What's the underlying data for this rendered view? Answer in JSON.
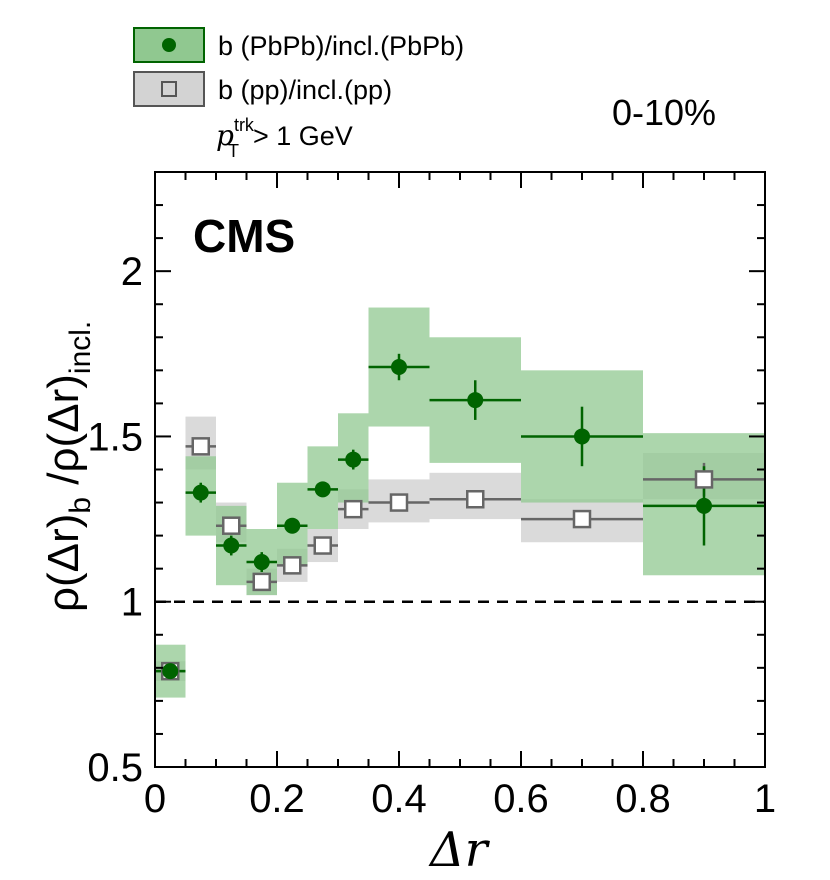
{
  "chart_data": {
    "type": "scatter",
    "title": "",
    "experiment_label": "CMS",
    "centrality_label": "0-10%",
    "cut_label": {
      "var": "p",
      "sup": "trk",
      "sub": "T",
      "rest": "> 1 GeV"
    },
    "xlabel": "Δr",
    "ylabel": {
      "part1": "ρ(Δr)",
      "sub1": "b",
      "part2": " /ρ(Δr)",
      "sub2": "incl."
    },
    "xlim": [
      0,
      1
    ],
    "ylim": [
      0.5,
      2.3
    ],
    "x_ticks": [
      "0",
      "0.2",
      "0.4",
      "0.6",
      "0.8",
      "1"
    ],
    "y_ticks": [
      "0.5",
      "1",
      "1.5",
      "2"
    ],
    "reference_line": 1,
    "series": [
      {
        "name": "b (PbPb)/incl.(PbPb)",
        "marker": "filled-circle",
        "color": "#006400",
        "band_color": "#90c890",
        "points": [
          {
            "x": 0.025,
            "xerr": 0.025,
            "y": 0.79,
            "syst_lo": 0.71,
            "syst_hi": 0.87
          },
          {
            "x": 0.075,
            "xerr": 0.025,
            "y": 1.33,
            "syst_lo": 1.2,
            "syst_hi": 1.44
          },
          {
            "x": 0.125,
            "xerr": 0.025,
            "y": 1.17,
            "syst_lo": 1.05,
            "syst_hi": 1.29
          },
          {
            "x": 0.175,
            "xerr": 0.025,
            "y": 1.12,
            "syst_lo": 1.02,
            "syst_hi": 1.22
          },
          {
            "x": 0.225,
            "xerr": 0.025,
            "y": 1.23,
            "syst_lo": 1.11,
            "syst_hi": 1.36
          },
          {
            "x": 0.275,
            "xerr": 0.025,
            "y": 1.34,
            "syst_lo": 1.22,
            "syst_hi": 1.47
          },
          {
            "x": 0.325,
            "xerr": 0.025,
            "y": 1.43,
            "syst_lo": 1.3,
            "syst_hi": 1.57
          },
          {
            "x": 0.4,
            "xerr": 0.05,
            "y": 1.71,
            "syst_lo": 1.53,
            "syst_hi": 1.89
          },
          {
            "x": 0.525,
            "xerr": 0.075,
            "y": 1.61,
            "syst_lo": 1.42,
            "syst_hi": 1.8
          },
          {
            "x": 0.7,
            "xerr": 0.1,
            "y": 1.5,
            "syst_lo": 1.3,
            "syst_hi": 1.7
          },
          {
            "x": 0.9,
            "xerr": 0.1,
            "y": 1.29,
            "syst_lo": 1.08,
            "syst_hi": 1.51
          }
        ],
        "stat_err": [
          0.02,
          0.03,
          0.03,
          0.03,
          0.02,
          0.02,
          0.03,
          0.04,
          0.06,
          0.09,
          0.12
        ]
      },
      {
        "name": "b (pp)/incl.(pp)",
        "marker": "open-square",
        "color": "#666666",
        "band_color": "#d3d3d3",
        "points": [
          {
            "x": 0.025,
            "xerr": 0.025,
            "y": 0.79,
            "syst_lo": 0.76,
            "syst_hi": 0.82
          },
          {
            "x": 0.075,
            "xerr": 0.025,
            "y": 1.47,
            "syst_lo": 1.4,
            "syst_hi": 1.56
          },
          {
            "x": 0.125,
            "xerr": 0.025,
            "y": 1.23,
            "syst_lo": 1.18,
            "syst_hi": 1.3
          },
          {
            "x": 0.175,
            "xerr": 0.025,
            "y": 1.06,
            "syst_lo": 1.02,
            "syst_hi": 1.1
          },
          {
            "x": 0.225,
            "xerr": 0.025,
            "y": 1.11,
            "syst_lo": 1.06,
            "syst_hi": 1.16
          },
          {
            "x": 0.275,
            "xerr": 0.025,
            "y": 1.17,
            "syst_lo": 1.12,
            "syst_hi": 1.22
          },
          {
            "x": 0.325,
            "xerr": 0.025,
            "y": 1.28,
            "syst_lo": 1.22,
            "syst_hi": 1.34
          },
          {
            "x": 0.4,
            "xerr": 0.05,
            "y": 1.3,
            "syst_lo": 1.24,
            "syst_hi": 1.37
          },
          {
            "x": 0.525,
            "xerr": 0.075,
            "y": 1.31,
            "syst_lo": 1.25,
            "syst_hi": 1.39
          },
          {
            "x": 0.7,
            "xerr": 0.1,
            "y": 1.25,
            "syst_lo": 1.18,
            "syst_hi": 1.31
          },
          {
            "x": 0.9,
            "xerr": 0.1,
            "y": 1.37,
            "syst_lo": 1.31,
            "syst_hi": 1.45
          }
        ],
        "stat_err": [
          0.01,
          0.02,
          0.02,
          0.01,
          0.01,
          0.01,
          0.01,
          0.01,
          0.02,
          0.02,
          0.05
        ]
      }
    ]
  }
}
